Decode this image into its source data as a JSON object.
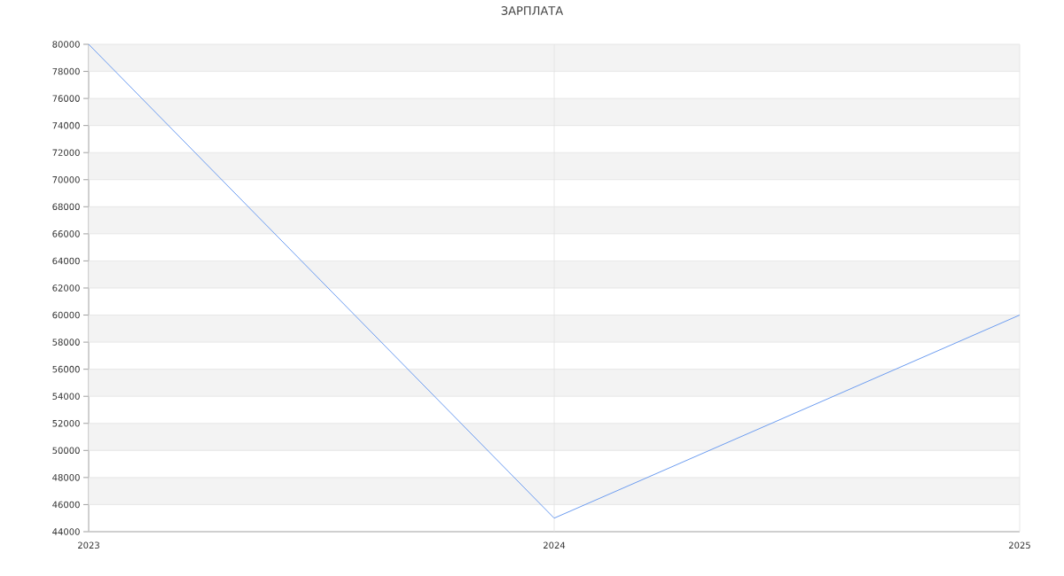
{
  "chart_data": {
    "type": "line",
    "title": "ЗАРПЛАТА",
    "categories": [
      "2023",
      "2024",
      "2025"
    ],
    "values": [
      80000,
      45000,
      60000
    ],
    "color": "#6b9cf0",
    "ylim": [
      44000,
      80000
    ],
    "yticks": [
      44000,
      46000,
      48000,
      50000,
      52000,
      54000,
      56000,
      58000,
      60000,
      62000,
      64000,
      66000,
      68000,
      70000,
      72000,
      74000,
      76000,
      78000,
      80000
    ],
    "grid": true
  }
}
